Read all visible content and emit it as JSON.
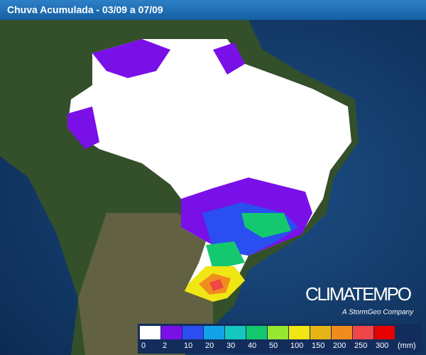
{
  "header": {
    "title": "Chuva Acumulada - 03/09 a 07/09"
  },
  "logo": {
    "name": "CLIMATEMPO",
    "tagline": "A StormGeo Company"
  },
  "legend": {
    "unit": "(mm)",
    "items": [
      {
        "value": 0,
        "color": "#ffffff"
      },
      {
        "value": 2,
        "color": "#7a10e8"
      },
      {
        "value": 10,
        "color": "#2a4ef0"
      },
      {
        "value": 20,
        "color": "#12a2e8"
      },
      {
        "value": 30,
        "color": "#14c8c0"
      },
      {
        "value": 40,
        "color": "#14c870"
      },
      {
        "value": 50,
        "color": "#96e632"
      },
      {
        "value": 100,
        "color": "#f0e614"
      },
      {
        "value": 150,
        "color": "#e6b414"
      },
      {
        "value": 200,
        "color": "#f08c1e"
      },
      {
        "value": 250,
        "color": "#f04646"
      },
      {
        "value": 300,
        "color": "#e60000"
      }
    ]
  }
}
